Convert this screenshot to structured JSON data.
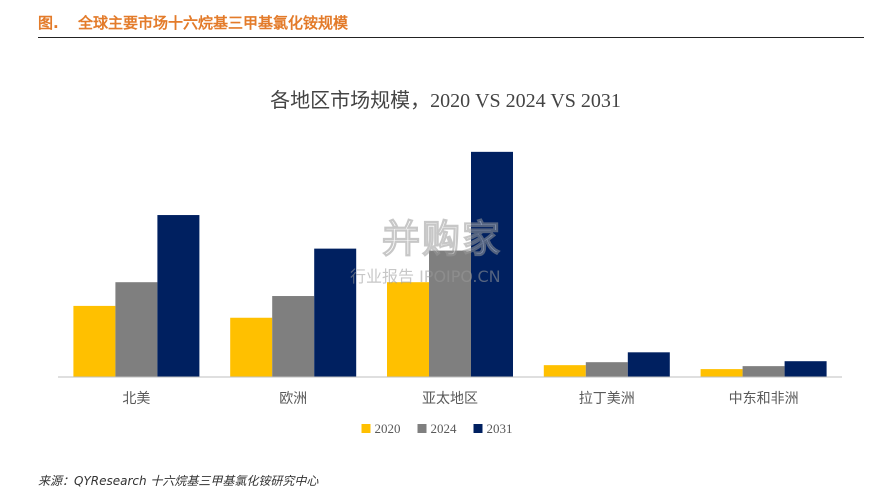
{
  "header": {
    "figure_label": "图.",
    "figure_title": "全球主要市场十六烷基三甲基氯化铵规模"
  },
  "source": "来源：QYResearch 十六烷基三甲基氯化铵研究中心",
  "watermark": {
    "main": "并购家",
    "sub": "行业报告 IPOIPO.CN"
  },
  "chart_data": {
    "type": "bar",
    "title": "各地区市场规模，2020 VS 2024 VS 2031",
    "categories": [
      "北美",
      "欧洲",
      "亚太地区",
      "拉丁美洲",
      "中东和非洲"
    ],
    "series": [
      {
        "name": "2020",
        "color": "#FFC000",
        "values": [
          72,
          60,
          96,
          12,
          8
        ]
      },
      {
        "name": "2024",
        "color": "#7F7F7F",
        "values": [
          96,
          82,
          128,
          15,
          11
        ]
      },
      {
        "name": "2031",
        "color": "#002060",
        "values": [
          164,
          130,
          228,
          25,
          16
        ]
      }
    ],
    "ylim": [
      0,
      240
    ],
    "legend_position": "bottom",
    "grid": false,
    "colors": {
      "axis": "#BFBFBF",
      "tick_text": "#595959"
    }
  }
}
